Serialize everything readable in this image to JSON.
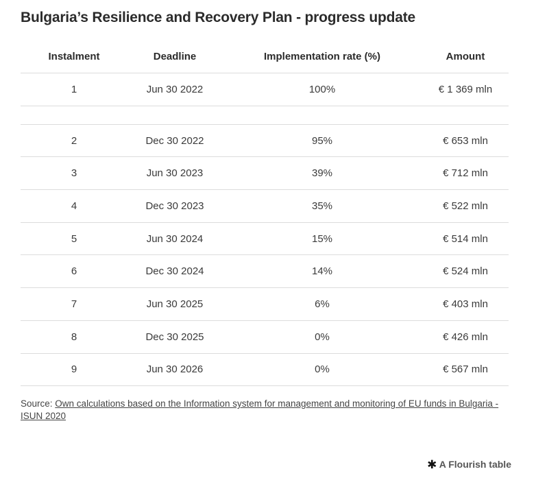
{
  "title": "Bulgaria’s Resilience and Recovery Plan - progress update",
  "chart_data": {
    "type": "table",
    "columns": [
      "Instalment",
      "Deadline",
      "Implementation rate (%)",
      "Amount"
    ],
    "rows": [
      [
        "1",
        "Jun 30 2022",
        "100%",
        "€ 1 369 mln"
      ],
      [
        "",
        "",
        "",
        ""
      ],
      [
        "2",
        "Dec 30 2022",
        "95%",
        "€ 653 mln"
      ],
      [
        "3",
        "Jun 30 2023",
        "39%",
        "€ 712 mln"
      ],
      [
        "4",
        "Dec 30 2023",
        "35%",
        "€ 522 mln"
      ],
      [
        "5",
        "Jun 30 2024",
        "15%",
        "€ 514 mln"
      ],
      [
        "6",
        "Dec 30 2024",
        "14%",
        "€ 524 mln"
      ],
      [
        "7",
        "Jun 30 2025",
        "6%",
        "€ 403 mln"
      ],
      [
        "8",
        "Dec 30 2025",
        "0%",
        "€ 426 mln"
      ],
      [
        "9",
        "Jun 30 2026",
        "0%",
        "€ 567 mln"
      ]
    ]
  },
  "source": {
    "label": "Source:",
    "link_text": "Own calculations based on the Information system for management and monitoring of EU funds in Bulgaria - ISUN 2020"
  },
  "footer": {
    "icon": "flourish-star-icon",
    "text": "A Flourish table"
  }
}
